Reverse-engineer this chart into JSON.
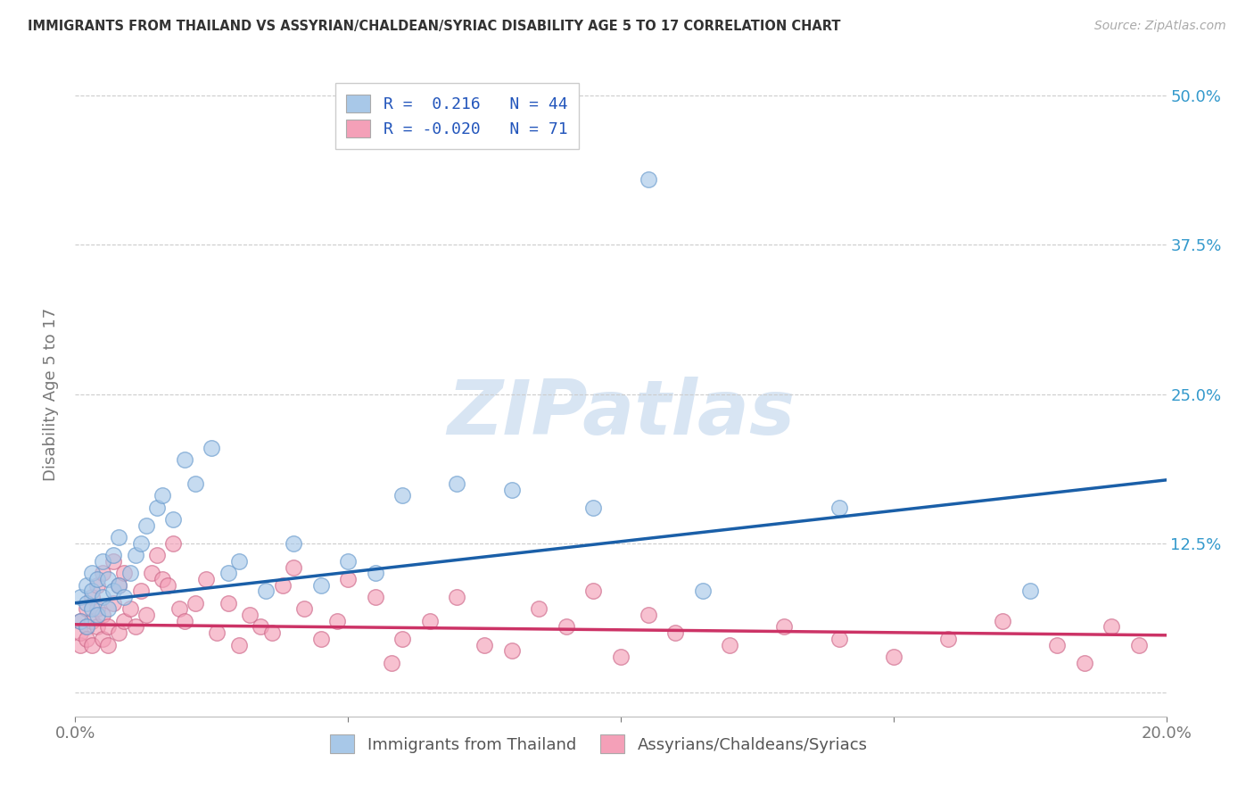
{
  "title": "IMMIGRANTS FROM THAILAND VS ASSYRIAN/CHALDEAN/SYRIAC DISABILITY AGE 5 TO 17 CORRELATION CHART",
  "source": "Source: ZipAtlas.com",
  "ylabel": "Disability Age 5 to 17",
  "xlim": [
    0.0,
    0.2
  ],
  "ylim": [
    -0.02,
    0.52
  ],
  "right_ytick_vals": [
    0.0,
    0.125,
    0.25,
    0.375,
    0.5
  ],
  "right_yticklabels": [
    "",
    "12.5%",
    "25.0%",
    "37.5%",
    "50.0%"
  ],
  "grid_ytick_vals": [
    0.0,
    0.125,
    0.25,
    0.375,
    0.5
  ],
  "legend_label1": "Immigrants from Thailand",
  "legend_label2": "Assyrians/Chaldeans/Syriacs",
  "blue_fill": "#a8c8e8",
  "blue_edge": "#6699cc",
  "pink_fill": "#f4a0b8",
  "pink_edge": "#cc6688",
  "blue_line": "#1a5fa8",
  "pink_line": "#cc3366",
  "watermark_text": "ZIPatlas",
  "watermark_color": "#ccddf0",
  "background_color": "#ffffff",
  "grid_color": "#cccccc",
  "blue_trend_y0": 0.075,
  "blue_trend_y1": 0.178,
  "pink_trend_y0": 0.057,
  "pink_trend_y1": 0.048,
  "blue_x": [
    0.001,
    0.001,
    0.002,
    0.002,
    0.002,
    0.003,
    0.003,
    0.003,
    0.004,
    0.004,
    0.005,
    0.005,
    0.006,
    0.006,
    0.007,
    0.007,
    0.008,
    0.008,
    0.009,
    0.01,
    0.011,
    0.012,
    0.013,
    0.015,
    0.016,
    0.018,
    0.02,
    0.022,
    0.025,
    0.028,
    0.03,
    0.035,
    0.04,
    0.045,
    0.05,
    0.055,
    0.06,
    0.07,
    0.08,
    0.095,
    0.105,
    0.115,
    0.14,
    0.175
  ],
  "blue_y": [
    0.06,
    0.08,
    0.055,
    0.075,
    0.09,
    0.07,
    0.085,
    0.1,
    0.065,
    0.095,
    0.08,
    0.11,
    0.07,
    0.095,
    0.085,
    0.115,
    0.09,
    0.13,
    0.08,
    0.1,
    0.115,
    0.125,
    0.14,
    0.155,
    0.165,
    0.145,
    0.195,
    0.175,
    0.205,
    0.1,
    0.11,
    0.085,
    0.125,
    0.09,
    0.11,
    0.1,
    0.165,
    0.175,
    0.17,
    0.155,
    0.43,
    0.085,
    0.155,
    0.085
  ],
  "pink_x": [
    0.001,
    0.001,
    0.001,
    0.002,
    0.002,
    0.002,
    0.003,
    0.003,
    0.003,
    0.004,
    0.004,
    0.004,
    0.005,
    0.005,
    0.005,
    0.006,
    0.006,
    0.007,
    0.007,
    0.008,
    0.008,
    0.009,
    0.009,
    0.01,
    0.011,
    0.012,
    0.013,
    0.014,
    0.015,
    0.016,
    0.017,
    0.018,
    0.019,
    0.02,
    0.022,
    0.024,
    0.026,
    0.028,
    0.03,
    0.032,
    0.034,
    0.036,
    0.038,
    0.04,
    0.042,
    0.045,
    0.048,
    0.05,
    0.055,
    0.058,
    0.06,
    0.065,
    0.07,
    0.075,
    0.08,
    0.085,
    0.09,
    0.095,
    0.1,
    0.105,
    0.11,
    0.12,
    0.13,
    0.14,
    0.15,
    0.16,
    0.17,
    0.18,
    0.185,
    0.19,
    0.195
  ],
  "pink_y": [
    0.04,
    0.06,
    0.05,
    0.055,
    0.07,
    0.045,
    0.06,
    0.08,
    0.04,
    0.055,
    0.07,
    0.09,
    0.045,
    0.065,
    0.1,
    0.055,
    0.04,
    0.075,
    0.11,
    0.05,
    0.09,
    0.06,
    0.1,
    0.07,
    0.055,
    0.085,
    0.065,
    0.1,
    0.115,
    0.095,
    0.09,
    0.125,
    0.07,
    0.06,
    0.075,
    0.095,
    0.05,
    0.075,
    0.04,
    0.065,
    0.055,
    0.05,
    0.09,
    0.105,
    0.07,
    0.045,
    0.06,
    0.095,
    0.08,
    0.025,
    0.045,
    0.06,
    0.08,
    0.04,
    0.035,
    0.07,
    0.055,
    0.085,
    0.03,
    0.065,
    0.05,
    0.04,
    0.055,
    0.045,
    0.03,
    0.045,
    0.06,
    0.04,
    0.025,
    0.055,
    0.04
  ]
}
